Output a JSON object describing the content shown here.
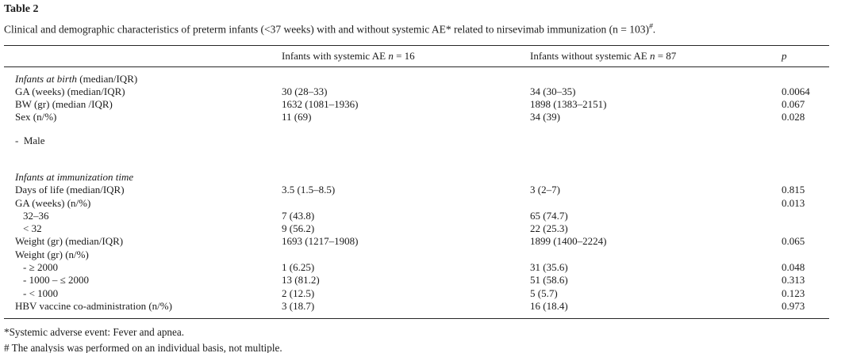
{
  "page": {
    "background": "#ffffff",
    "text_color": "#1b1b1b",
    "rule_color": "#262626"
  },
  "table_label": "Table 2",
  "caption": {
    "main": "Clinical and demographic characteristics of preterm infants (<37 weeks) with and without systemic AE* related to nirsevimab immunization (n = 103)",
    "sup": "#",
    "end": "."
  },
  "header": {
    "col0": "",
    "col1": {
      "text": "Infants with systemic AE",
      "italic": "n",
      "value": "= 16"
    },
    "col2": {
      "text": "Infants without systemic AE",
      "italic": "n",
      "value": "= 87"
    },
    "col3": {
      "italic": "p"
    }
  },
  "rows": [
    {
      "type": "section",
      "italic": "Infants at birth",
      "roman": " (median/IQR)"
    },
    {
      "type": "data",
      "indent": 0,
      "label": "GA (weeks) (median/IQR)",
      "with_ae": "30 (28–33)",
      "without_ae": "34 (30–35)",
      "p": "0.0064"
    },
    {
      "type": "data",
      "indent": 0,
      "label": "BW (gr) (median /IQR)",
      "with_ae": "1632 (1081–1936)",
      "without_ae": "1898 (1383–2151)",
      "p": "0.067"
    },
    {
      "type": "data",
      "indent": 0,
      "label": "Sex (n/%)",
      "with_ae": "11 (69)",
      "without_ae": "34 (39)",
      "p": "0.028"
    },
    {
      "type": "spacer",
      "height": 13
    },
    {
      "type": "data",
      "indent": 0,
      "label": "-  Male",
      "with_ae": "",
      "without_ae": "",
      "p": ""
    },
    {
      "type": "spacer",
      "height": 30
    },
    {
      "type": "section",
      "italic": "Infants at immunization time",
      "roman": ""
    },
    {
      "type": "data",
      "indent": 0,
      "label": "Days of life (median/IQR)",
      "with_ae": "3.5 (1.5–8.5)",
      "without_ae": "3 (2–7)",
      "p": "0.815"
    },
    {
      "type": "data",
      "indent": 0,
      "label": "GA (weeks) (n/%)",
      "with_ae": "",
      "without_ae": "",
      "p": "0.013"
    },
    {
      "type": "data",
      "indent": 1,
      "label": "32–36",
      "with_ae": "7 (43.8)",
      "without_ae": "65 (74.7)",
      "p": ""
    },
    {
      "type": "data",
      "indent": 1,
      "label": "< 32",
      "with_ae": "9 (56.2)",
      "without_ae": "22 (25.3)",
      "p": ""
    },
    {
      "type": "data",
      "indent": 0,
      "label": "Weight (gr) (median/IQR)",
      "with_ae": "1693 (1217–1908)",
      "without_ae": "1899 (1400–2224)",
      "p": "0.065"
    },
    {
      "type": "data",
      "indent": 0,
      "label": "Weight (gr) (n/%)",
      "with_ae": "",
      "without_ae": "",
      "p": ""
    },
    {
      "type": "data",
      "indent": 1,
      "label": "- ≥ 2000",
      "with_ae": "1 (6.25)",
      "without_ae": "31 (35.6)",
      "p": "0.048"
    },
    {
      "type": "data",
      "indent": 1,
      "label": "- 1000 – ≤ 2000",
      "with_ae": "13 (81.2)",
      "without_ae": "51 (58.6)",
      "p": "0.313"
    },
    {
      "type": "data",
      "indent": 1,
      "label": "- < 1000",
      "with_ae": "2 (12.5)",
      "without_ae": "5 (5.7)",
      "p": "0.123"
    },
    {
      "type": "data",
      "indent": 0,
      "label": "HBV vaccine co-administration (n/%)",
      "with_ae": "3 (18.7)",
      "without_ae": "16 (18.4)",
      "p": "0.973"
    }
  ],
  "footnotes": [
    "*Systemic adverse event: Fever and apnea.",
    "# The analysis was performed on an individual basis, not multiple."
  ]
}
